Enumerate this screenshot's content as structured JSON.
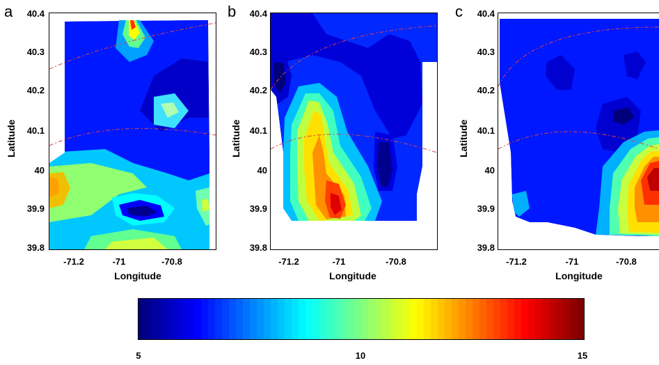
{
  "panels": [
    {
      "letter": "a",
      "xlabel": "Longitude",
      "ylabel": "Latitude"
    },
    {
      "letter": "b",
      "xlabel": "Longitude",
      "ylabel": "Latitude"
    },
    {
      "letter": "c",
      "xlabel": "Longitude",
      "ylabel": "Latitude"
    }
  ],
  "chart_data": {
    "type": "heatmap",
    "panels": [
      "a",
      "b",
      "c"
    ],
    "xlabel": "Longitude",
    "ylabel": "Latitude",
    "xlim": [
      -71.3,
      -70.65
    ],
    "ylim": [
      39.8,
      40.4
    ],
    "x_ticks": [
      "-71.2",
      "-71",
      "-70.8"
    ],
    "y_ticks": [
      "40.4",
      "40.3",
      "40.2",
      "40.1",
      "40",
      "39.9",
      "39.8"
    ],
    "colorbar": {
      "min": 5,
      "max": 15,
      "ticks": [
        "5",
        "10",
        "15"
      ],
      "colormap": "jet"
    },
    "colors": {
      "dark_blue": "#00008f",
      "blue": "#0000ff",
      "cyan": "#00ffff",
      "yellow": "#ffff00",
      "red": "#ff0000",
      "dark_red": "#800000",
      "dashed_line": "#e04040"
    }
  }
}
